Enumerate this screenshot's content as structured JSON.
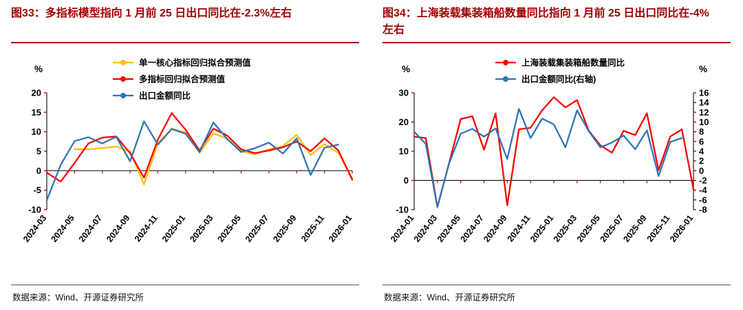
{
  "page": {
    "background": "#ffffff",
    "title_color": "#a00000",
    "axis_color": "#1a1a1a",
    "tick_color": "#c00000",
    "footer_rule_color": "#595959"
  },
  "chart_data": [
    {
      "type": "line",
      "title": "图33：多指标模型指向 1 月前 25 日出口同比在-2.3%左右",
      "source": "数据来源：Wind、开源证券研究所",
      "ylabel": "%",
      "ylim": [
        -10,
        20
      ],
      "yticks": [
        20,
        15,
        10,
        5,
        0,
        -5,
        -10
      ],
      "grid": false,
      "legend_position": "top",
      "x_label_every": 2,
      "x": [
        "2024-03",
        "2024-04",
        "2024-05",
        "2024-06",
        "2024-07",
        "2024-08",
        "2024-09",
        "2024-10",
        "2024-11",
        "2024-12",
        "2025-01",
        "2025-02",
        "2025-03",
        "2025-04",
        "2025-05",
        "2025-06",
        "2025-07",
        "2025-08",
        "2025-09",
        "2025-10",
        "2025-11",
        "2025-12",
        "2026-01"
      ],
      "series": [
        {
          "name": "单一核心指标回归拟合预测值",
          "color": "#FFC000",
          "axis": "left",
          "values": [
            null,
            null,
            5.5,
            5.5,
            5.8,
            6.2,
            5,
            -3.5,
            7,
            10.8,
            9.8,
            4.6,
            9.6,
            8.2,
            5,
            4.2,
            5.5,
            6.3,
            9.2,
            4,
            6.8,
            4.6,
            -2
          ]
        },
        {
          "name": "多指标回归拟合预测值",
          "color": "#FF0000",
          "axis": "left",
          "values": [
            -0.5,
            -2.8,
            2,
            7,
            8.5,
            8.8,
            4.5,
            -1.8,
            8,
            14.8,
            10.5,
            5.2,
            10.8,
            9,
            5.5,
            4.5,
            5.2,
            6,
            7.5,
            5,
            8.3,
            5.2,
            -2.3
          ]
        },
        {
          "name": "出口金额同比",
          "color": "#2E75B6",
          "axis": "left",
          "values": [
            -7.6,
            1.5,
            7.6,
            8.6,
            7,
            8.7,
            2.4,
            12.7,
            6.7,
            10.7,
            9.5,
            4.8,
            12.4,
            8.1,
            4.8,
            5.8,
            7.2,
            4.4,
            8.3,
            -1.1,
            5.9,
            6.7,
            null
          ]
        }
      ]
    },
    {
      "type": "line",
      "title": "图34：上海装载集装箱船数量同比指向 1 月前 25 日出口同比在-4%左右",
      "source": "数据来源：Wind、开源证券研究所",
      "ylabel_left": "%",
      "ylabel_right": "%",
      "ylim_left": [
        -10,
        30
      ],
      "yticks_left": [
        30,
        20,
        10,
        0,
        -10
      ],
      "ylim_right": [
        -8,
        16
      ],
      "yticks_right": [
        16,
        14,
        12,
        10,
        8,
        6,
        4,
        2,
        0,
        -2,
        -4,
        -6,
        -8
      ],
      "grid": false,
      "legend_position": "top",
      "x_label_every": 2,
      "x": [
        "2024-01",
        "2024-02",
        "2024-03",
        "2024-04",
        "2024-05",
        "2024-06",
        "2024-07",
        "2024-08",
        "2024-09",
        "2024-10",
        "2024-11",
        "2024-12",
        "2025-01",
        "2025-02",
        "2025-03",
        "2025-04",
        "2025-05",
        "2025-06",
        "2025-07",
        "2025-08",
        "2025-09",
        "2025-10",
        "2025-11",
        "2025-12",
        "2026-01"
      ],
      "series": [
        {
          "name": "上海装载集装箱船数量同比",
          "color": "#FF0000",
          "axis": "left",
          "values": [
            15,
            14.5,
            -9,
            6,
            21,
            22,
            10.5,
            23,
            -8.5,
            17.5,
            18,
            24,
            28.5,
            25,
            27.5,
            17,
            12,
            9.5,
            17,
            15.5,
            23,
            3.5,
            15,
            17.5,
            -3
          ]
        },
        {
          "name": "出口金额同比(右轴)",
          "color": "#2E75B6",
          "axis": "right",
          "values": [
            8,
            5.5,
            -7.5,
            1.5,
            7.6,
            8.6,
            7,
            8.7,
            2.4,
            12.7,
            6.7,
            10.7,
            9.5,
            4.8,
            12.4,
            8.1,
            4.8,
            5.8,
            7.2,
            4.4,
            8.3,
            -1.1,
            5.9,
            6.7,
            null
          ]
        }
      ]
    }
  ]
}
